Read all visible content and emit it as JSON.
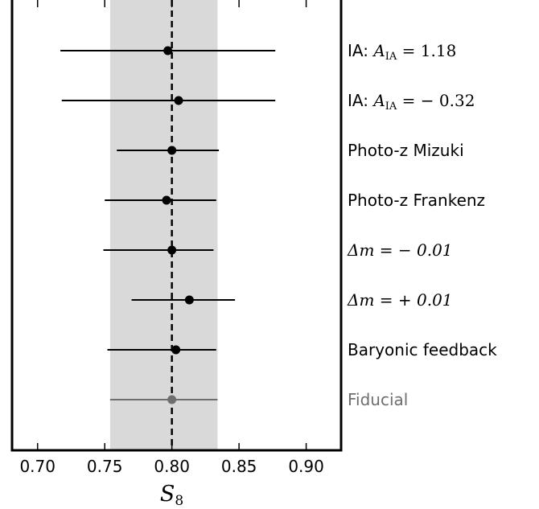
{
  "chart_data": {
    "type": "forest",
    "xlabel": "S_8",
    "xlabel_main": "S",
    "xlabel_sub": "8",
    "xlim": [
      0.681,
      0.926
    ],
    "xticks": [
      0.7,
      0.75,
      0.8,
      0.85,
      0.9
    ],
    "xtick_labels": [
      "0.70",
      "0.75",
      "0.80",
      "0.85",
      "0.90"
    ],
    "reference": {
      "value": 0.8,
      "band": [
        0.754,
        0.834
      ],
      "band_color": "#d9d9d9"
    },
    "rows": [
      {
        "label_prefix": "IA: ",
        "label_math": "A",
        "label_sub": "IA",
        "label_rest": " = 1.18",
        "center": 0.797,
        "low": 0.717,
        "high": 0.877,
        "color": "#000000"
      },
      {
        "label_prefix": "IA: ",
        "label_math": "A",
        "label_sub": "IA",
        "label_rest": " = − 0.32",
        "center": 0.805,
        "low": 0.718,
        "high": 0.877,
        "color": "#000000"
      },
      {
        "label": "Photo-z Mizuki",
        "center": 0.8,
        "low": 0.759,
        "high": 0.835,
        "color": "#000000"
      },
      {
        "label": "Photo-z Frankenz",
        "center": 0.796,
        "low": 0.75,
        "high": 0.833,
        "color": "#000000"
      },
      {
        "label_math_full": "Δm = − 0.01",
        "center": 0.8,
        "low": 0.749,
        "high": 0.831,
        "color": "#000000"
      },
      {
        "label_math_full": "Δm = + 0.01",
        "center": 0.813,
        "low": 0.77,
        "high": 0.847,
        "color": "#000000"
      },
      {
        "label": "Baryonic feedback",
        "center": 0.803,
        "low": 0.752,
        "high": 0.833,
        "color": "#000000"
      },
      {
        "label": "Fiducial",
        "center": 0.8,
        "low": 0.754,
        "high": 0.834,
        "color": "#6e6e6e"
      }
    ]
  }
}
